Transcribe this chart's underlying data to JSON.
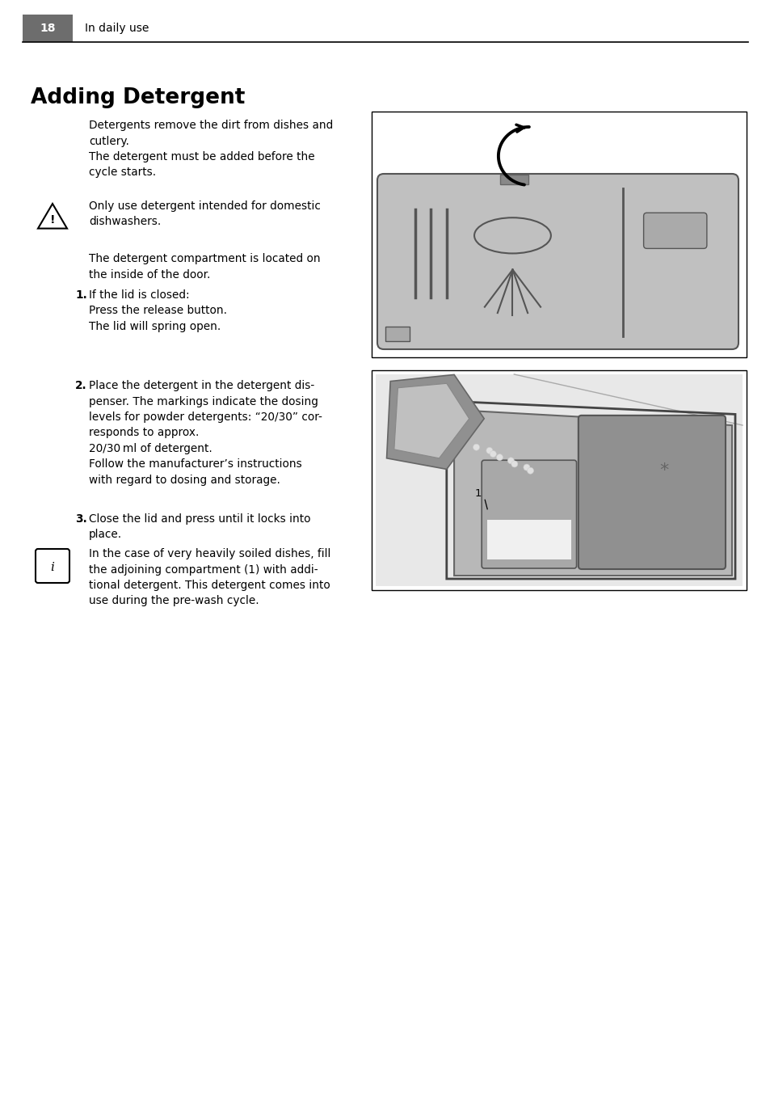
{
  "page_number": "18",
  "page_header": "In daily use",
  "title": "Adding Detergent",
  "background_color": "#ffffff",
  "text_color": "#000000",
  "header_bg": "#6d6d6d",
  "header_text_color": "#ffffff"
}
